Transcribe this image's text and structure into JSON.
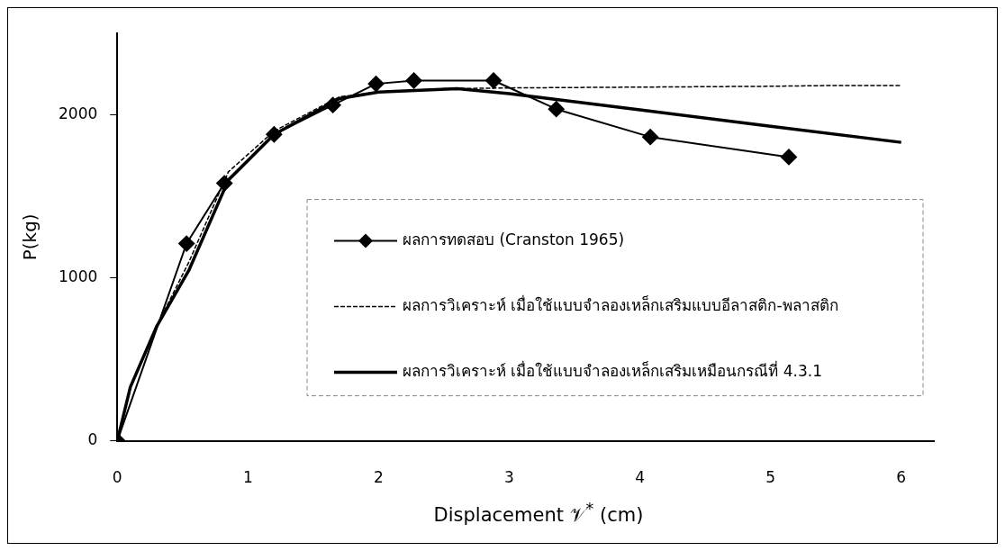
{
  "chart_data": {
    "type": "line",
    "xlabel": "Displacement 𝒱$^{*}$ (cm)",
    "ylabel": "P(kg)",
    "xlim": [
      0,
      6.25
    ],
    "xticks": [
      0,
      1,
      2,
      3,
      4,
      5,
      6
    ],
    "ylim": [
      0,
      2500
    ],
    "yticks": [
      0,
      1000,
      2000
    ],
    "grid": false,
    "legend": "bottom right",
    "series": [
      {
        "name": "ผลการทดสอบ (Cranston 1965)",
        "color": "#000000",
        "marker": "diamond",
        "line_style": "solid",
        "x": [
          0,
          0.53,
          0.82,
          1.2,
          1.65,
          1.98,
          2.27,
          2.88,
          3.36,
          4.08,
          5.14
        ],
        "values": [
          0,
          1210,
          1580,
          1880,
          2060,
          2190,
          2210,
          2210,
          2035,
          1864,
          1741
        ]
      },
      {
        "name": "ผลการวิเคราะห์ เมื่อใช้แบบจำลองเหล็กเสริมแบบอีลาสติก-พลาสติก",
        "color": "#000000",
        "marker": "none",
        "line_style": "dashed",
        "x": [
          0,
          0.1,
          0.3,
          0.55,
          0.85,
          1.2,
          1.7,
          2.0,
          2.5,
          3.0,
          4.0,
          5.0,
          5.5,
          6.0
        ],
        "values": [
          0,
          330,
          700,
          1100,
          1650,
          1900,
          2110,
          2140,
          2160,
          2165,
          2170,
          2175,
          2180,
          2180
        ]
      },
      {
        "name": "ผลการวิเคราะห์ เมื่อใช้แบบจำลองเหล็กเสริมเหมือนกรณีที่ 4.3.1",
        "color": "#000000",
        "marker": "none",
        "line_style": "solid",
        "x": [
          0,
          0.1,
          0.3,
          0.55,
          0.85,
          1.2,
          1.7,
          2.0,
          2.6,
          3.0,
          4.0,
          5.0,
          6.0
        ],
        "values": [
          0,
          330,
          700,
          1050,
          1600,
          1880,
          2100,
          2140,
          2160,
          2130,
          2030,
          1930,
          1831
        ]
      }
    ]
  }
}
